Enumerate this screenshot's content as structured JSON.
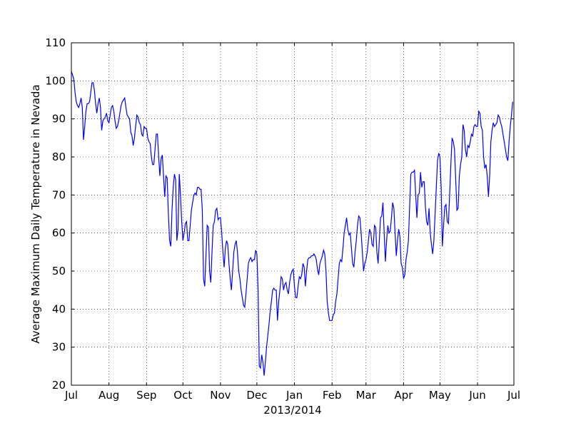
{
  "chart_data": {
    "type": "line",
    "xlabel": "2013/2014",
    "ylabel": "Average Maximum Daily Temperature in Nevada",
    "color": "#0000ff",
    "grid": true,
    "xlim": [
      0,
      365
    ],
    "xticks": [
      {
        "value": 0,
        "label": "Jul"
      },
      {
        "value": 31,
        "label": "Aug"
      },
      {
        "value": 62,
        "label": "Sep"
      },
      {
        "value": 92,
        "label": "Oct"
      },
      {
        "value": 123,
        "label": "Nov"
      },
      {
        "value": 153,
        "label": "Dec"
      },
      {
        "value": 184,
        "label": "Jan"
      },
      {
        "value": 215,
        "label": "Feb"
      },
      {
        "value": 243,
        "label": "Mar"
      },
      {
        "value": 274,
        "label": "Apr"
      },
      {
        "value": 304,
        "label": "May"
      },
      {
        "value": 335,
        "label": "Jun"
      },
      {
        "value": 365,
        "label": "Jul"
      }
    ],
    "ylim": [
      20,
      110
    ],
    "yticks": [
      20,
      30,
      40,
      50,
      60,
      70,
      80,
      90,
      100,
      110
    ],
    "values": [
      102.5,
      101.5,
      100.5,
      97,
      94.5,
      93.5,
      93,
      94,
      95.5,
      93,
      84.5,
      88,
      92,
      94,
      94,
      94.5,
      97,
      99.5,
      99.5,
      97.5,
      94,
      91.5,
      94,
      95.5,
      93,
      87,
      89.5,
      90,
      90.5,
      91.5,
      89.5,
      89,
      91,
      93,
      93.5,
      92,
      89.5,
      87.5,
      88,
      89.5,
      91.5,
      93.5,
      94.5,
      95,
      95.5,
      93,
      91,
      90.5,
      90,
      86.5,
      85.5,
      83,
      85,
      88,
      91,
      90.5,
      89,
      88.5,
      86,
      85.5,
      88,
      87.5,
      87.5,
      85,
      84,
      83.5,
      80,
      78,
      78,
      82,
      86,
      86,
      80,
      75,
      79.5,
      80.5,
      75,
      69.5,
      75,
      74.5,
      65,
      58,
      56.5,
      66,
      72,
      75.5,
      74,
      58,
      61,
      75.5,
      70,
      63,
      58,
      60,
      62.5,
      63,
      58,
      58,
      62,
      66,
      68,
      70,
      70.5,
      70,
      72,
      72,
      71.5,
      71.5,
      66,
      48,
      46,
      54,
      62,
      61.5,
      50,
      47,
      55,
      62,
      63,
      66,
      66.5,
      63.5,
      64,
      64,
      60,
      55,
      51,
      56,
      58,
      57,
      52,
      48,
      45,
      50,
      55,
      57,
      58,
      55,
      50,
      48,
      45,
      43,
      41,
      40.5,
      44,
      48,
      52,
      53,
      53.5,
      52.5,
      53,
      53,
      55.5,
      54.5,
      45,
      25,
      24.5,
      28,
      26,
      22.5,
      26,
      30,
      33,
      36,
      39.5,
      42,
      45,
      45.5,
      45,
      45,
      37,
      42,
      45,
      48.5,
      48,
      45,
      46.5,
      47,
      45,
      44,
      47,
      49,
      50,
      50.5,
      46,
      43,
      43,
      46,
      48.5,
      48,
      49,
      52,
      51,
      46,
      50,
      53,
      53.5,
      53.5,
      54,
      54,
      54.5,
      54,
      53,
      50.5,
      49,
      52,
      53,
      54,
      55.5,
      54.5,
      50,
      42,
      39,
      37,
      37,
      37,
      38.5,
      39,
      42,
      44,
      48,
      52,
      53,
      52.5,
      56,
      60,
      62,
      64,
      61,
      59.5,
      60,
      56,
      52,
      51,
      55,
      58,
      62,
      64.5,
      64,
      60,
      55,
      50,
      52,
      53,
      55,
      58,
      61,
      60,
      57,
      56.5,
      62,
      61.5,
      55,
      52,
      58,
      64,
      64.5,
      68,
      60,
      52.5,
      58,
      62,
      60,
      60.5,
      64,
      68,
      66.5,
      60,
      54,
      58,
      61,
      59,
      52,
      51,
      48,
      49,
      53,
      55,
      58,
      67,
      75.5,
      76,
      76,
      76.5,
      70,
      64,
      70,
      70.5,
      76,
      72,
      73.5,
      73.5,
      67,
      63,
      62,
      66.5,
      60,
      57,
      54.5,
      58,
      65,
      72,
      79,
      81,
      80,
      72,
      56.5,
      62,
      67,
      67.5,
      63,
      62.5,
      70,
      78,
      85,
      84,
      82,
      74,
      66,
      66.5,
      75,
      78,
      80,
      88.5,
      87,
      82,
      80,
      83,
      82.5,
      84,
      86,
      85.5,
      88,
      88.5,
      88,
      88,
      92,
      91.5,
      88,
      87,
      80,
      77,
      78,
      75,
      69.5,
      75,
      84,
      87,
      89,
      88,
      88.5,
      89,
      91,
      90.5,
      89,
      88,
      86,
      84,
      82,
      80,
      79,
      84,
      88,
      91,
      94.5
    ]
  }
}
